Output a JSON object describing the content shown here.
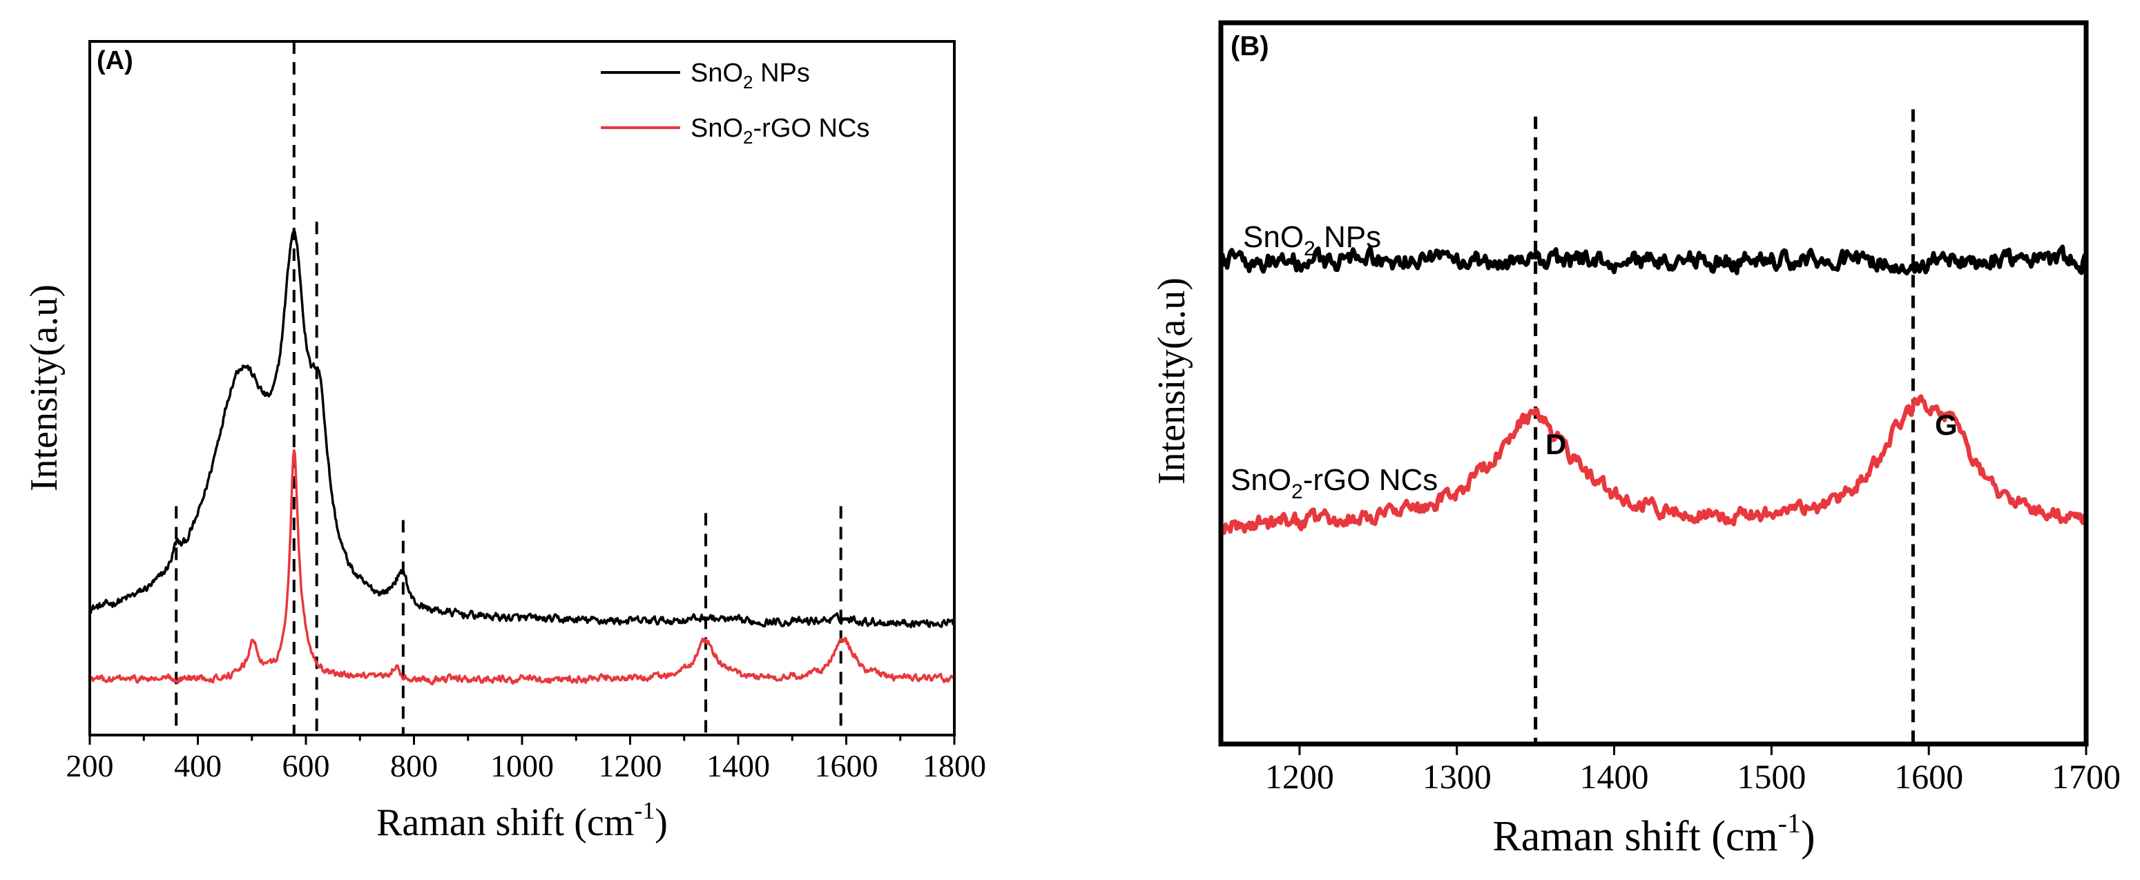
{
  "panels": {
    "A": {
      "label": "(A)",
      "xlabel": "Raman shift (cm",
      "xlabel_sup": "-1",
      "xlabel_close": ")",
      "ylabel": "Intensity(a.u)",
      "legend": {
        "placement": "top-right",
        "entries": [
          {
            "series": "sno2_nps",
            "pre": "SnO",
            "sub": "2",
            "post": " NPs"
          },
          {
            "series": "sno2_rgo",
            "pre": "SnO",
            "sub": "2",
            "post": "-rGO NCs"
          }
        ]
      }
    },
    "B": {
      "label": "(B)",
      "xlabel": "Raman shift (cm",
      "xlabel_sup": "-1",
      "xlabel_close": ")",
      "ylabel": "Intensity(a.u)",
      "series_labels": [
        {
          "series": "sno2_nps",
          "pre": "SnO",
          "sub": "2",
          "post": " NPs"
        },
        {
          "series": "sno2_rgo",
          "pre": "SnO",
          "sub": "2",
          "post": "-rGO NCs"
        }
      ],
      "peak_labels": [
        {
          "text": "D",
          "x": 1350
        },
        {
          "text": "G",
          "x": 1590
        }
      ]
    }
  },
  "chart_data": [
    {
      "type": "line",
      "panel": "A",
      "title": "",
      "xlabel": "Raman shift (cm-1)",
      "ylabel": "Intensity(a.u)",
      "xlim": [
        200,
        1800
      ],
      "ylim": [
        0,
        100
      ],
      "xticks": [
        200,
        400,
        600,
        800,
        1000,
        1200,
        1400,
        1600,
        1800
      ],
      "reference_lines": [
        {
          "x": 360,
          "y_top": 33
        },
        {
          "x": 578,
          "y_top": 100
        },
        {
          "x": 620,
          "y_top": 74
        },
        {
          "x": 780,
          "y_top": 31
        },
        {
          "x": 1340,
          "y_top": 32
        },
        {
          "x": 1590,
          "y_top": 33
        }
      ],
      "series": [
        {
          "name": "SnO2 NPs",
          "key": "sno2_nps",
          "color": "#000000",
          "baseline": 16,
          "noise": 0.45,
          "peaks": [
            {
              "center": 360,
              "height": 2.5,
              "width": 8
            },
            {
              "center": 480,
              "height": 34,
              "width": 70
            },
            {
              "center": 578,
              "height": 42,
              "width": 26
            },
            {
              "center": 625,
              "height": 20,
              "width": 20
            },
            {
              "center": 770,
              "height": 3,
              "width": 15
            },
            {
              "center": 782,
              "height": 3,
              "width": 7
            },
            {
              "center": 1340,
              "height": 0.6,
              "width": 40
            },
            {
              "center": 1590,
              "height": 0.6,
              "width": 40
            }
          ]
        },
        {
          "name": "SnO2-rGO NCs",
          "key": "sno2_rgo",
          "color": "#e8383d",
          "baseline": 8,
          "noise": 0.4,
          "peaks": [
            {
              "center": 502,
              "height": 5,
              "width": 12
            },
            {
              "center": 578,
              "height": 30,
              "width": 9
            },
            {
              "center": 590,
              "height": 4,
              "width": 20
            },
            {
              "center": 765,
              "height": 1.8,
              "width": 8
            },
            {
              "center": 1340,
              "height": 5.5,
              "width": 24
            },
            {
              "center": 1595,
              "height": 5.5,
              "width": 25
            }
          ]
        }
      ]
    },
    {
      "type": "line",
      "panel": "B",
      "title": "",
      "xlabel": "Raman shift (cm-1)",
      "ylabel": "Intensity(a.u)",
      "xlim": [
        1150,
        1700
      ],
      "ylim": [
        0,
        100
      ],
      "xticks": [
        1200,
        1300,
        1400,
        1500,
        1600,
        1700
      ],
      "reference_lines": [
        {
          "x": 1350,
          "y_top": 87
        },
        {
          "x": 1590,
          "y_top": 88
        }
      ],
      "series": [
        {
          "name": "SnO2 NPs",
          "key": "sno2_nps",
          "color": "#000000",
          "baseline": 67,
          "noise": 1.1,
          "peaks": []
        },
        {
          "name": "SnO2-rGO NCs",
          "key": "sno2_rgo",
          "color": "#e8383d",
          "baseline": 30,
          "noise": 0.9,
          "peaks": [
            {
              "center": 1348,
              "height": 15,
              "width": 33
            },
            {
              "center": 1590,
              "height": 14,
              "width": 27
            },
            {
              "center": 1615,
              "height": 7,
              "width": 18
            }
          ]
        }
      ]
    }
  ]
}
